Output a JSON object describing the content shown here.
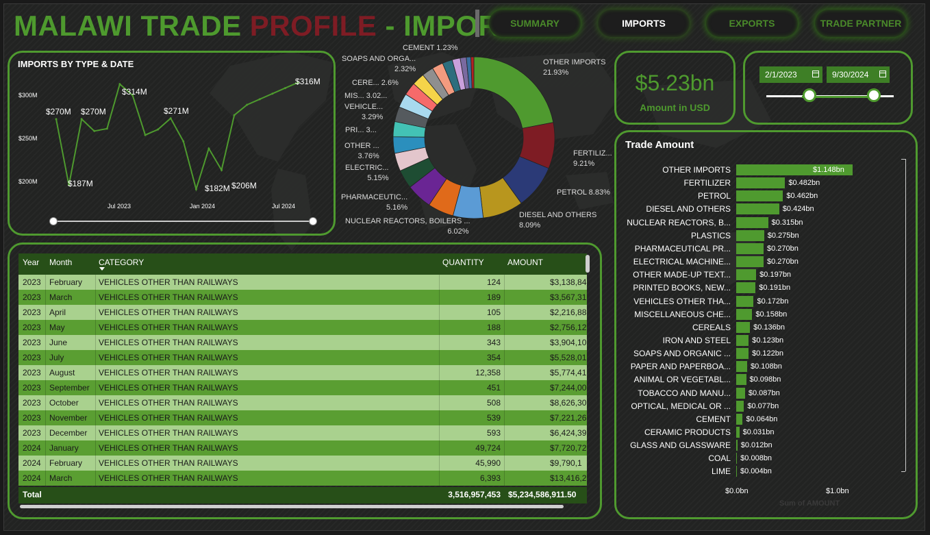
{
  "header": {
    "title_part1": "MALAWI TRADE ",
    "title_part2": "PROFILE",
    "title_part3": " - IMPORTS",
    "nav": [
      {
        "label": "SUMMARY",
        "active": false
      },
      {
        "label": "IMPORTS",
        "active": true
      },
      {
        "label": "EXPORTS",
        "active": false
      },
      {
        "label": "TRADE PARTNER",
        "active": false
      }
    ]
  },
  "line_chart": {
    "title": "IMPORTS BY TYPE & DATE",
    "y_ticks": [
      "$300M",
      "$250M",
      "$200M"
    ],
    "x_ticks": [
      "Jul 2023",
      "Jan 2024",
      "Jul 2024"
    ],
    "labels": [
      "$270M",
      "$187M",
      "$270M",
      "$314M",
      "$271M",
      "$182M",
      "$206M",
      "$316M"
    ]
  },
  "kpi": {
    "value": "$5.23bn",
    "label": "Amount in USD"
  },
  "date_filter": {
    "start": "2/1/2023",
    "end": "9/30/2024"
  },
  "donut_labels": [
    {
      "name": "OTHER IMPORTS",
      "pct": "21.93%"
    },
    {
      "name": "FERTILIZ...",
      "pct": "9.21%"
    },
    {
      "name": "PETROL 8.83%",
      "pct": ""
    },
    {
      "name": "DIESEL AND OTHERS",
      "pct": "8.09%"
    },
    {
      "name": "NUCLEAR REACTORS, BOILERS ...",
      "pct": "6.02%"
    },
    {
      "name": "PHARMACEUTIC...",
      "pct": "5.16%"
    },
    {
      "name": "ELECTRIC...",
      "pct": "5.15%"
    },
    {
      "name": "OTHER ...",
      "pct": "3.76%"
    },
    {
      "name": "PRI... 3...",
      "pct": ""
    },
    {
      "name": "VEHICLE...",
      "pct": "3.29%"
    },
    {
      "name": "MIS... 3.02...",
      "pct": ""
    },
    {
      "name": "CERE... 2.6%",
      "pct": ""
    },
    {
      "name": "SOAPS AND ORGA...",
      "pct": "2.32%"
    },
    {
      "name": "CEMENT 1.23%",
      "pct": ""
    }
  ],
  "bar_chart": {
    "title": "Trade Amount",
    "x_ticks": [
      "$0.0bn",
      "$1.0bn"
    ],
    "x_axis_title": "Sum of AMOUNT"
  },
  "table": {
    "columns": [
      "Year",
      "Month",
      "CATEGORY",
      "QUANTITY",
      "AMOUNT"
    ],
    "rows": [
      [
        "2023",
        "February",
        "VEHICLES OTHER THAN RAILWAYS",
        "124",
        "$3,138,84"
      ],
      [
        "2023",
        "March",
        "VEHICLES OTHER THAN RAILWAYS",
        "189",
        "$3,567,31"
      ],
      [
        "2023",
        "April",
        "VEHICLES OTHER THAN RAILWAYS",
        "105",
        "$2,216,88"
      ],
      [
        "2023",
        "May",
        "VEHICLES OTHER THAN RAILWAYS",
        "188",
        "$2,756,12"
      ],
      [
        "2023",
        "June",
        "VEHICLES OTHER THAN RAILWAYS",
        "343",
        "$3,904,10"
      ],
      [
        "2023",
        "July",
        "VEHICLES OTHER THAN RAILWAYS",
        "354",
        "$5,528,01"
      ],
      [
        "2023",
        "August",
        "VEHICLES OTHER THAN RAILWAYS",
        "12,358",
        "$5,774,41"
      ],
      [
        "2023",
        "September",
        "VEHICLES OTHER THAN RAILWAYS",
        "451",
        "$7,244,00"
      ],
      [
        "2023",
        "October",
        "VEHICLES OTHER THAN RAILWAYS",
        "508",
        "$8,626,30"
      ],
      [
        "2023",
        "November",
        "VEHICLES OTHER THAN RAILWAYS",
        "539",
        "$7,221,26"
      ],
      [
        "2023",
        "December",
        "VEHICLES OTHER THAN RAILWAYS",
        "593",
        "$6,424,39"
      ],
      [
        "2024",
        "January",
        "VEHICLES OTHER THAN RAILWAYS",
        "49,724",
        "$7,720,72"
      ],
      [
        "2024",
        "February",
        "VEHICLES OTHER THAN RAILWAYS",
        "45,990",
        "$9,790,1"
      ],
      [
        "2024",
        "March",
        "VEHICLES OTHER THAN RAILWAYS",
        "6,393",
        "$13,416,2"
      ]
    ],
    "total_label": "Total",
    "total_quantity": "3,516,957,453",
    "total_amount": "$5,234,586,911.50"
  },
  "chart_data": [
    {
      "type": "line",
      "title": "IMPORTS BY TYPE & DATE",
      "xlabel": "",
      "ylabel": "",
      "x_tick_labels": [
        "Jul 2023",
        "Jan 2024",
        "Jul 2024"
      ],
      "x": [
        "2023-02",
        "2023-03",
        "2023-04",
        "2023-05",
        "2023-06",
        "2023-07",
        "2023-08",
        "2023-09",
        "2023-10",
        "2023-11",
        "2023-12",
        "2024-01",
        "2024-02",
        "2024-03",
        "2024-04",
        "2024-05",
        "2024-06",
        "2024-07",
        "2024-08",
        "2024-09"
      ],
      "series": [
        {
          "values": [
            270,
            187,
            270,
            255,
            258,
            314,
            300,
            250,
            257,
            271,
            242,
            182,
            233,
            206,
            275,
            288,
            295,
            302,
            309,
            316
          ]
        }
      ],
      "ylim": [
        170,
        325
      ],
      "y_ticks": [
        200,
        250,
        300
      ],
      "color": "#4e9a2e"
    },
    {
      "type": "pie",
      "donut": true,
      "slices": [
        {
          "label": "OTHER IMPORTS",
          "value": 21.93,
          "color": "#4f9a2f"
        },
        {
          "label": "FERTILIZ...",
          "value": 9.21,
          "color": "#7e1c24"
        },
        {
          "label": "PETROL",
          "value": 8.83,
          "color": "#2b3a77"
        },
        {
          "label": "DIESEL AND OTHERS",
          "value": 8.09,
          "color": "#b8961e"
        },
        {
          "label": "NUCLEAR REACTORS, BOILERS ...",
          "value": 6.02,
          "color": "#5b9bd5"
        },
        {
          "label": "PHARMACEUTIC...",
          "value": 5.16,
          "color": "#e06a1a"
        },
        {
          "label": "ELECTRIC...",
          "value": 5.15,
          "color": "#6a2594"
        },
        {
          "label": "OTHER ...",
          "value": 3.76,
          "color": "#1e4d33"
        },
        {
          "label": "PRI...",
          "value": 3.6,
          "color": "#e3c6cc"
        },
        {
          "label": "VEHICLE...",
          "value": 3.29,
          "color": "#2b8fbd"
        },
        {
          "label": "MIS...",
          "value": 3.02,
          "color": "#43c2b5"
        },
        {
          "label": "",
          "value": 3.0,
          "color": "#555a5e"
        },
        {
          "label": "",
          "value": 2.8,
          "color": "#a8d9ee"
        },
        {
          "label": "CERE...",
          "value": 2.6,
          "color": "#f66a6a"
        },
        {
          "label": "",
          "value": 2.5,
          "color": "#f5d449"
        },
        {
          "label": "SOAPS AND ORGA...",
          "value": 2.32,
          "color": "#8f8f8f"
        },
        {
          "label": "",
          "value": 2.2,
          "color": "#f39b7f"
        },
        {
          "label": "",
          "value": 2.0,
          "color": "#2d6e7e"
        },
        {
          "label": "",
          "value": 1.6,
          "color": "#c9a0dc"
        },
        {
          "label": "CEMENT",
          "value": 1.23,
          "color": "#7a6aa0"
        },
        {
          "label": "",
          "value": 0.9,
          "color": "#3b6fa0"
        },
        {
          "label": "",
          "value": 0.6,
          "color": "#b22222"
        }
      ]
    },
    {
      "type": "bar",
      "orientation": "horizontal",
      "title": "Trade Amount",
      "xlabel": "Sum of AMOUNT",
      "categories": [
        "OTHER IMPORTS",
        "FERTILIZER",
        "PETROL",
        "DIESEL AND OTHERS",
        "NUCLEAR REACTORS, B...",
        "PLASTICS",
        "PHARMACEUTICAL PR...",
        "ELECTRICAL MACHINE...",
        "OTHER MADE-UP TEXT...",
        "PRINTED BOOKS, NEW...",
        "VEHICLES OTHER THA...",
        "MISCELLANEOUS CHE...",
        "CEREALS",
        "IRON AND STEEL",
        "SOAPS AND ORGANIC ...",
        "PAPER AND PAPERBOA...",
        "ANIMAL OR VEGETABL...",
        "TOBACCO AND MANU...",
        "OPTICAL, MEDICAL OR ...",
        "CEMENT",
        "CERAMIC PRODUCTS",
        "GLASS AND GLASSWARE",
        "COAL",
        "LIME"
      ],
      "values": [
        1.148,
        0.482,
        0.462,
        0.424,
        0.315,
        0.275,
        0.27,
        0.27,
        0.197,
        0.191,
        0.172,
        0.158,
        0.136,
        0.123,
        0.122,
        0.108,
        0.098,
        0.087,
        0.077,
        0.064,
        0.031,
        0.012,
        0.008,
        0.004
      ],
      "value_labels": [
        "$1.148bn",
        "$0.482bn",
        "$0.462bn",
        "$0.424bn",
        "$0.315bn",
        "$0.275bn",
        "$0.270bn",
        "$0.270bn",
        "$0.197bn",
        "$0.191bn",
        "$0.172bn",
        "$0.158bn",
        "$0.136bn",
        "$0.123bn",
        "$0.122bn",
        "$0.108bn",
        "$0.098bn",
        "$0.087bn",
        "$0.077bn",
        "$0.064bn",
        "$0.031bn",
        "$0.012bn",
        "$0.008bn",
        "$0.004bn"
      ],
      "xlim": [
        0,
        1.2
      ],
      "unit": "bn USD",
      "color": "#4f9a2f"
    }
  ]
}
